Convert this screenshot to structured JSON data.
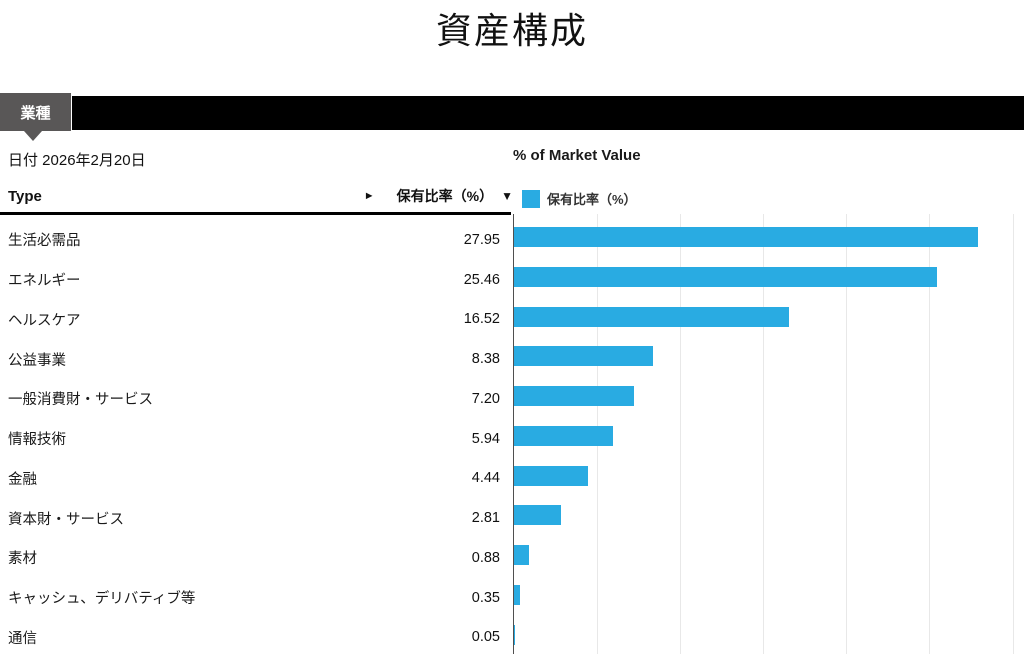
{
  "title": "資産構成",
  "tab_bar": {
    "active_tab": "業種"
  },
  "date_line": "日付 2026年2月20日",
  "table": {
    "type_header": "Type",
    "value_header": "保有比率（%）",
    "expand_icon": "►",
    "sort_icon": "▼"
  },
  "chart": {
    "header": "% of Market Value",
    "legend_label": "保有比率（%）",
    "bar_color": "#29ABE2",
    "axis_color": "#4f4f4f",
    "gridline_color": "#e8e8e8"
  },
  "chart_data": {
    "type": "bar",
    "orientation": "horizontal",
    "title": "% of Market Value",
    "series_name": "保有比率（%）",
    "categories": [
      "生活必需品",
      "エネルギー",
      "ヘルスケア",
      "公益事業",
      "一般消費財・サービス",
      "情報技術",
      "金融",
      "資本財・サービス",
      "素材",
      "キャッシュ、デリバティブ等",
      "通信"
    ],
    "values": [
      27.95,
      25.46,
      16.52,
      8.38,
      7.2,
      5.94,
      4.44,
      2.81,
      0.88,
      0.35,
      0.05
    ],
    "value_labels": [
      "27.95",
      "25.46",
      "16.52",
      "8.38",
      "7.20",
      "5.94",
      "4.44",
      "2.81",
      "0.88",
      "0.35",
      "0.05"
    ],
    "xlim": [
      0,
      30.75
    ],
    "grid_step": 5,
    "grid": true,
    "legend_position": "top-left"
  }
}
